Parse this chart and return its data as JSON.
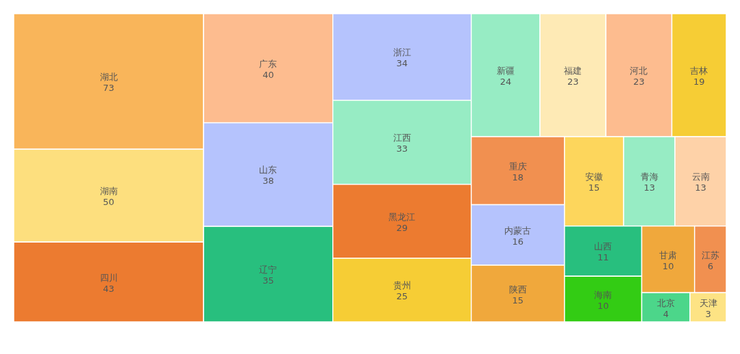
{
  "chart_data": {
    "type": "other",
    "data_labels": true,
    "categories": [
      "湖北",
      "湖南",
      "四川",
      "广东",
      "山东",
      "辽宁",
      "浙江",
      "江西",
      "黑龙江",
      "贵州",
      "新疆",
      "福建",
      "河北",
      "吉林",
      "重庆",
      "内蒙古",
      "陕西",
      "安徽",
      "青海",
      "云南",
      "山西",
      "海南",
      "甘肃",
      "江苏",
      "北京",
      "天津"
    ],
    "values": [
      73,
      50,
      43,
      40,
      38,
      35,
      34,
      33,
      29,
      25,
      24,
      23,
      23,
      19,
      18,
      16,
      15,
      15,
      13,
      13,
      11,
      10,
      10,
      6,
      4,
      3
    ],
    "colors": [
      "#f9b55a",
      "#fddf7e",
      "#ec7b30",
      "#fdbc8f",
      "#b5c3fd",
      "#28bf7e",
      "#b5c3fd",
      "#97ecc4",
      "#ec7b30",
      "#f6cd35",
      "#97ecc4",
      "#feeab5",
      "#fdbc8f",
      "#f6cd35",
      "#f19050",
      "#b5c3fd",
      "#f0a83c",
      "#fdd65c",
      "#97ecc4",
      "#fed2a8",
      "#28bf7e",
      "#33cc14",
      "#f0a83c",
      "#f19050",
      "#4cd68a",
      "#fde384"
    ]
  }
}
